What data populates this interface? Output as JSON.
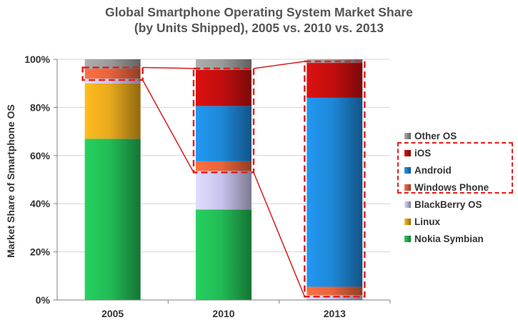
{
  "chart_data": {
    "type": "bar",
    "stacked": true,
    "title_lines": [
      "Global Smartphone Operating System Market Share",
      "(by Units Shipped), 2005 vs. 2010 vs. 2013"
    ],
    "ylabel": "Market Share of Smartphone OS",
    "ylim": [
      0,
      100
    ],
    "y_ticks": [
      "0%",
      "20%",
      "40%",
      "60%",
      "80%",
      "100%"
    ],
    "grid": true,
    "legend_position": "right",
    "categories": [
      "2005",
      "2010",
      "2013"
    ],
    "series": [
      {
        "name": "Nokia Symbian",
        "values": [
          67,
          37.6,
          0.3
        ],
        "color": "#22bb55"
      },
      {
        "name": "Linux",
        "values": [
          23,
          0,
          0
        ],
        "color": "#e8a91c"
      },
      {
        "name": "BlackBerry OS",
        "values": [
          2,
          16,
          1.7
        ],
        "color": "#c8c4ee"
      },
      {
        "name": "Windows Phone",
        "values": [
          4,
          4,
          3.5
        ],
        "color": "#e8643a"
      },
      {
        "name": "Android",
        "values": [
          0,
          23,
          78.5
        ],
        "color": "#1e88d8"
      },
      {
        "name": "iOS",
        "values": [
          0,
          15,
          14.5
        ],
        "color": "#c40e0e"
      },
      {
        "name": "Other OS",
        "values": [
          4,
          4.4,
          1.5
        ],
        "color": "#9a9c9a"
      }
    ],
    "highlighted_series": [
      "Windows Phone",
      "Android",
      "iOS"
    ]
  }
}
